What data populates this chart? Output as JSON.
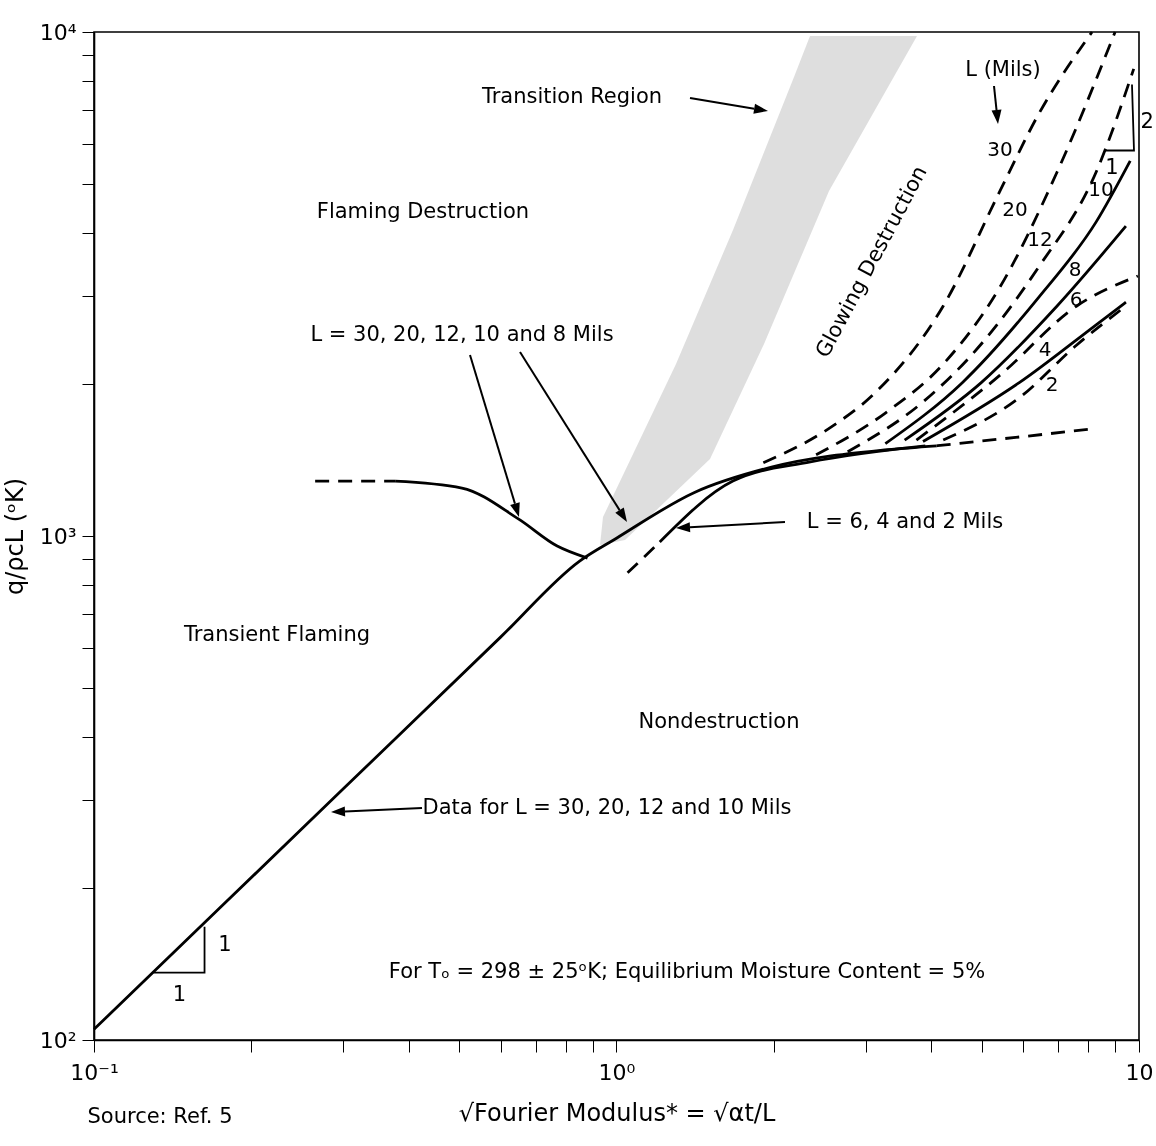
{
  "chart_data": {
    "type": "line",
    "xlabel": "√Fourier Modulus* = √αt/L",
    "ylabel": "q/ρcL (ᵒK)",
    "log": "xy",
    "xlim": [
      0.1,
      10
    ],
    "ylim": [
      100,
      10000
    ],
    "xticks": [
      {
        "value": 0.1,
        "label": "10⁻¹"
      },
      {
        "value": 0.2,
        "label": null
      },
      {
        "value": 0.3,
        "label": null
      },
      {
        "value": 0.4,
        "label": null
      },
      {
        "value": 0.5,
        "label": null
      },
      {
        "value": 0.6,
        "label": null
      },
      {
        "value": 0.7,
        "label": null
      },
      {
        "value": 0.8,
        "label": null
      },
      {
        "value": 0.9,
        "label": null
      },
      {
        "value": 1,
        "label": "10⁰"
      },
      {
        "value": 2,
        "label": null
      },
      {
        "value": 3,
        "label": null
      },
      {
        "value": 4,
        "label": null
      },
      {
        "value": 5,
        "label": null
      },
      {
        "value": 6,
        "label": null
      },
      {
        "value": 7,
        "label": null
      },
      {
        "value": 8,
        "label": null
      },
      {
        "value": 9,
        "label": null
      },
      10
    ],
    "yticks": [
      {
        "value": 100,
        "label": "10²"
      },
      {
        "value": 200,
        "label": null
      },
      {
        "value": 300,
        "label": null
      },
      {
        "value": 400,
        "label": null
      },
      {
        "value": 500,
        "label": null
      },
      {
        "value": 600,
        "label": null
      },
      {
        "value": 700,
        "label": null
      },
      {
        "value": 800,
        "label": null
      },
      {
        "value": 900,
        "label": null
      },
      {
        "value": 1000,
        "label": "10³"
      },
      {
        "value": 2000,
        "label": null
      },
      {
        "value": 3000,
        "label": null
      },
      {
        "value": 4000,
        "label": null
      },
      {
        "value": 5000,
        "label": null
      },
      {
        "value": 6000,
        "label": null
      },
      {
        "value": 7000,
        "label": null
      },
      {
        "value": 8000,
        "label": null
      },
      {
        "value": 9000,
        "label": null
      },
      {
        "value": 10000,
        "label": "10⁴"
      }
    ],
    "series": [
      {
        "color": "#000000",
        "line_style": "solid",
        "x": [
          0.1,
          0.3,
          0.6,
          0.85,
          1.0,
          1.41,
          1.98,
          3.3,
          4.1
        ],
        "values": [
          105,
          315,
          630,
          892,
          990,
          1220,
          1370,
          1483,
          1510
        ]
      },
      {
        "color": "#000000",
        "line_style": "dashed",
        "x": [
          4.1,
          6,
          8.1
        ],
        "values": [
          1510,
          1575,
          1630
        ]
      },
      {
        "color": "#000000",
        "line_style": "dashed",
        "x": [
          0.265,
          0.377
        ],
        "values": [
          1285,
          1285
        ]
      },
      {
        "color": "#000000",
        "line_style": "solid",
        "x": [
          0.377,
          0.506,
          0.65,
          0.77,
          0.88
        ],
        "values": [
          1285,
          1245,
          1080,
          955,
          904
        ]
      },
      {
        "color": "#000000",
        "line_style": "dashed",
        "x": [
          1.05,
          1.21
        ],
        "values": [
          845,
          973
        ]
      },
      {
        "color": "#000000",
        "line_style": "solid",
        "x": [
          1.21,
          1.67,
          2.35,
          3.9
        ],
        "values": [
          973,
          1285,
          1403,
          1510
        ]
      },
      {
        "name": "30",
        "color": "#000000",
        "line_style": "dashed",
        "x": [
          1.91,
          2.54,
          3.11,
          4.22,
          5.42,
          6.41,
          8.13
        ],
        "values": [
          1397,
          1630,
          1914,
          2860,
          4840,
          6840,
          10000
        ]
      },
      {
        "name": "20",
        "color": "#000000",
        "line_style": "dashed",
        "x": [
          2.41,
          3.27,
          4.22,
          5.42,
          6.97,
          9.0
        ],
        "values": [
          1449,
          1754,
          2193,
          3119,
          5275,
          10000
        ]
      },
      {
        "name": "12",
        "color": "#000000",
        "line_style": "dashed",
        "x": [
          2.77,
          3.86,
          4.99,
          6.41,
          8.28,
          9.77
        ],
        "values": [
          1470,
          1845,
          2404,
          3404,
          5275,
          8450
        ]
      },
      {
        "name": "10",
        "color": "#000000",
        "line_style": "solid",
        "x": [
          3.27,
          4.59,
          6.41,
          8.28,
          9.62
        ],
        "values": [
          1525,
          2015,
          2965,
          4200,
          5550
        ]
      },
      {
        "name": "8",
        "color": "#000000",
        "line_style": "solid",
        "x": [
          3.56,
          4.99,
          6.97,
          9.44
        ],
        "values": [
          1550,
          2015,
          2860,
          4120
        ]
      },
      {
        "name": "6",
        "color": "#000000",
        "line_style": "dashed",
        "x": [
          3.75,
          5.42,
          7.6,
          9.95
        ],
        "values": [
          1550,
          2085,
          2860,
          3280
        ]
      },
      {
        "name": "4",
        "color": "#000000",
        "line_style": "solid",
        "x": [
          3.86,
          5.9,
          8.28,
          9.44
        ],
        "values": [
          1540,
          2015,
          2625,
          2910
        ]
      },
      {
        "name": "2",
        "color": "#000000",
        "line_style": "dashed",
        "x": [
          4.22,
          5.9,
          7.6,
          9.44
        ],
        "values": [
          1550,
          1880,
          2393,
          2860
        ]
      }
    ],
    "annotations": [
      "Transition Region",
      "L = 30, 20, 12, 10 and 8 Mils",
      "L = 6, 4 and 2 Mils",
      "Data for L = 30, 20, 12 and 10 Mils",
      "Flaming Destruction",
      "Transient Flaming",
      "Glowing Destruction",
      "L (Mils)",
      "Nondestruction",
      "For Tₒ = 298 ± 25ᵒK; Equilibrium Moisture Content = 5%",
      {
        "text": "1",
        "x": 0.163,
        "y": 171
      },
      {
        "text": "1",
        "x": 0.13,
        "y": 136
      },
      {
        "text": "2",
        "x": 9.7,
        "y": 8300
      },
      {
        "text": "1",
        "x": 8.57,
        "y": 5820
      },
      "Source:  Ref. 5"
    ]
  }
}
